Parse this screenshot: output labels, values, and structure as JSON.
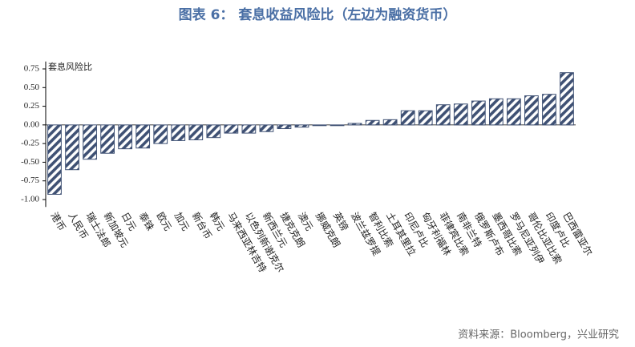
{
  "chart_data": {
    "type": "bar",
    "title": "图表 6： 套息收益风险比（左边为融资货币）",
    "y_label": "套息风险比",
    "source": "资料来源：Bloomberg，兴业研究",
    "color": "#3f5174",
    "categories": [
      "港币",
      "人民币",
      "瑞士法郎",
      "新加坡元",
      "日元",
      "泰铢",
      "欧元",
      "加元",
      "新台币",
      "韩元",
      "马来西亚林吉特",
      "以色列新谢克尔",
      "新西兰元",
      "捷克克朗",
      "澳元",
      "挪威克朗",
      "英镑",
      "波兰兹罗提",
      "智利比索",
      "土耳其里拉",
      "印尼卢比",
      "匈牙利福林",
      "菲律宾比索",
      "南非兰特",
      "俄罗斯卢布",
      "墨西哥比索",
      "罗马尼亚列伊",
      "哥伦比亚比索",
      "印度卢比",
      "巴西雷亚尔"
    ],
    "values": [
      -0.93,
      -0.6,
      -0.46,
      -0.38,
      -0.32,
      -0.31,
      -0.25,
      -0.21,
      -0.2,
      -0.17,
      -0.11,
      -0.11,
      -0.09,
      -0.05,
      -0.03,
      -0.01,
      -0.01,
      0.02,
      0.06,
      0.07,
      0.19,
      0.19,
      0.27,
      0.28,
      0.32,
      0.35,
      0.35,
      0.39,
      0.41,
      0.7
    ],
    "ylim": [
      -1.1,
      0.85
    ],
    "yticks": [
      0.75,
      {
        "value": 0.5,
        "label": "0.50"
      },
      0.25,
      {
        "value": 0,
        "label": "0.00"
      },
      -0.25,
      {
        "value": -0.5,
        "label": "-0.50"
      },
      -0.75,
      {
        "value": -1,
        "label": "-1.00"
      }
    ]
  }
}
